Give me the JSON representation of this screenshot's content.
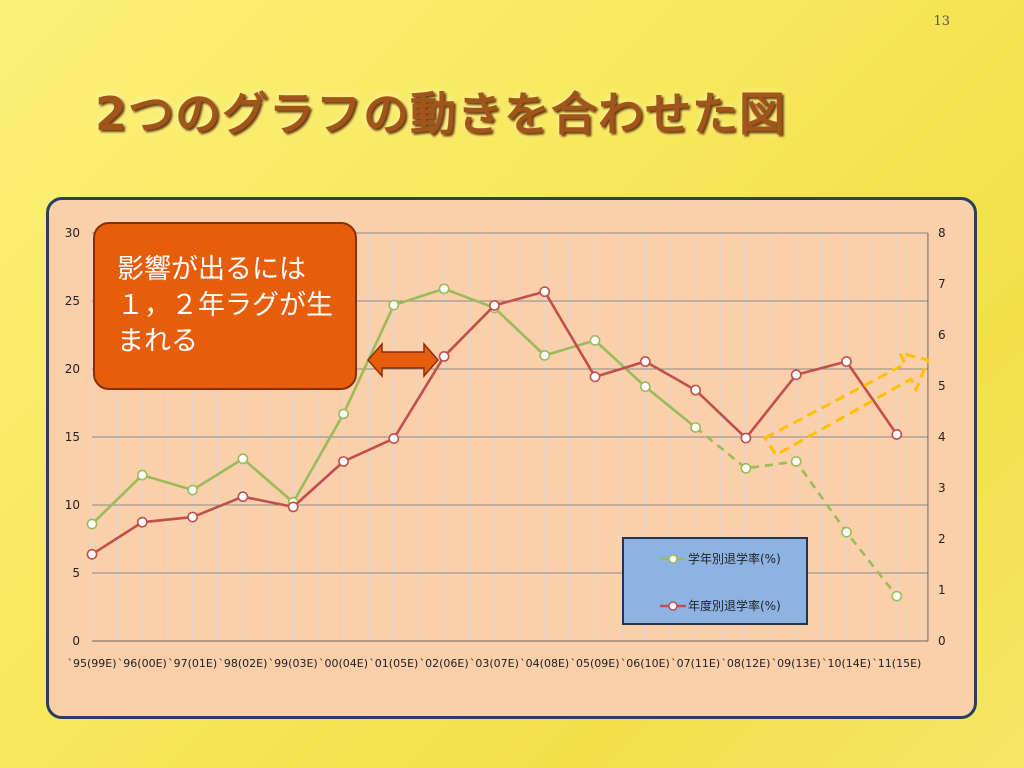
{
  "slide": {
    "number": "13",
    "title": "2つのグラフの動きを合わせた図",
    "note": "影響が出るには１，２年ラグが生まれる"
  },
  "colors": {
    "green": "#9bbb59",
    "red": "#c0504d",
    "note_bg": "#e65d0c",
    "panel_bg": "#fbcfaa",
    "arrow_outline": "#ffc000"
  },
  "chart_data": {
    "type": "line",
    "categories": [
      "`95(99E)",
      "`96(00E)",
      "`97(01E)",
      "`98(02E)",
      "`99(03E)",
      "`00(04E)",
      "`01(05E)",
      "`02(06E)",
      "`03(07E)",
      "`04(08E)",
      "`05(09E)",
      "`06(10E)",
      "`07(11E)",
      "`08(12E)",
      "`09(13E)",
      "`10(14E)",
      "`11(15E)"
    ],
    "y_left": {
      "ticks": [
        0,
        5,
        10,
        15,
        20,
        25,
        30
      ],
      "range": [
        0,
        30
      ]
    },
    "y_right": {
      "ticks": [
        0,
        1,
        2,
        3,
        4,
        5,
        6,
        7,
        8
      ],
      "range": [
        0,
        8
      ]
    },
    "grid": true,
    "legend_position": "bottom-right",
    "series": [
      {
        "name": "学年別退学率(%)",
        "axis": "left",
        "color": "#9bbb59",
        "values": [
          8.6,
          12.2,
          11.1,
          13.4,
          10.2,
          16.7,
          24.7,
          25.9,
          24.5,
          21.0,
          22.1,
          18.7,
          15.7,
          12.7,
          13.2,
          8.0,
          3.3
        ],
        "dashed_from_index": 12
      },
      {
        "name": "年度別退学率(%)",
        "axis": "right",
        "color": "#c0504d",
        "values": [
          1.7,
          2.33,
          2.43,
          2.83,
          2.63,
          3.52,
          3.97,
          5.58,
          6.58,
          6.85,
          5.18,
          5.48,
          4.92,
          3.98,
          5.22,
          5.48,
          4.05
        ]
      }
    ]
  }
}
